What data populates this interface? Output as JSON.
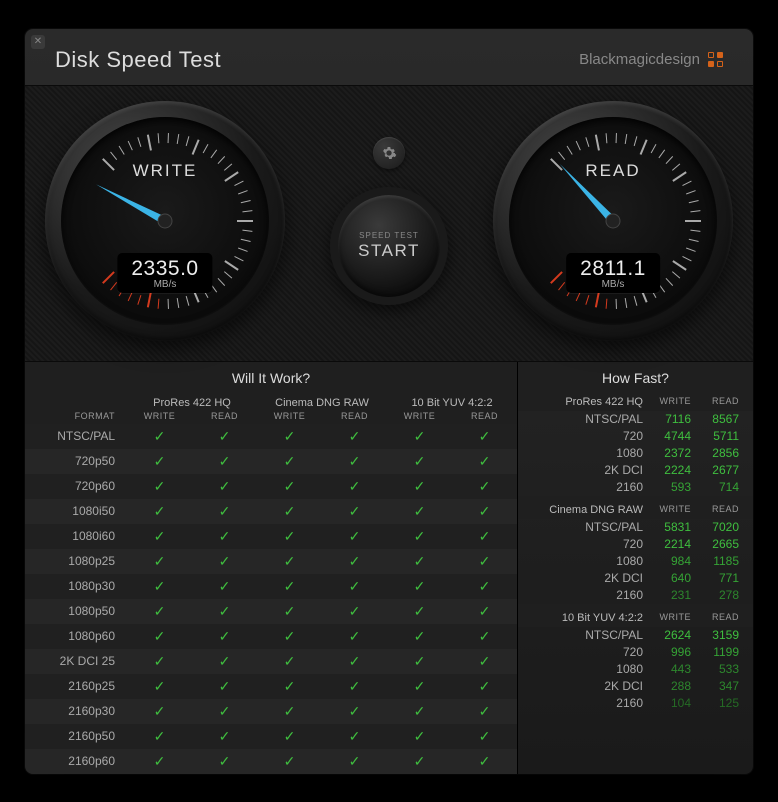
{
  "app": {
    "title": "Disk Speed Test",
    "brand": "Blackmagicdesign"
  },
  "gauges": {
    "write": {
      "label": "WRITE",
      "value": "2335.0",
      "unit": "MB/s",
      "angle_deg": -62,
      "ticks": 41,
      "major_every": 5,
      "start_deg": -135,
      "sweep_deg": 270,
      "red_from_tick": 34
    },
    "read": {
      "label": "READ",
      "value": "2811.1",
      "unit": "MB/s",
      "angle_deg": -43,
      "ticks": 41,
      "major_every": 5,
      "start_deg": -135,
      "sweep_deg": 270,
      "red_from_tick": 34
    }
  },
  "start": {
    "small": "SPEED TEST",
    "big": "START"
  },
  "will_it_work": {
    "title": "Will It Work?",
    "format_header": "FORMAT",
    "groups": [
      {
        "name": "ProRes 422 HQ",
        "cols": [
          "WRITE",
          "READ"
        ]
      },
      {
        "name": "Cinema DNG RAW",
        "cols": [
          "WRITE",
          "READ"
        ]
      },
      {
        "name": "10 Bit YUV 4:2:2",
        "cols": [
          "WRITE",
          "READ"
        ]
      }
    ],
    "formats": [
      "NTSC/PAL",
      "720p50",
      "720p60",
      "1080i50",
      "1080i60",
      "1080p25",
      "1080p30",
      "1080p50",
      "1080p60",
      "2K DCI 25",
      "2160p25",
      "2160p30",
      "2160p50",
      "2160p60"
    ],
    "all_pass": true
  },
  "how_fast": {
    "title": "How Fast?",
    "write_label": "WRITE",
    "read_label": "READ",
    "groups": [
      {
        "name": "ProRes 422 HQ",
        "rows": [
          {
            "fmt": "NTSC/PAL",
            "w": "7116",
            "r": "8567",
            "wc": "g1",
            "rc": "g1"
          },
          {
            "fmt": "720",
            "w": "4744",
            "r": "5711",
            "wc": "g1",
            "rc": "g1"
          },
          {
            "fmt": "1080",
            "w": "2372",
            "r": "2856",
            "wc": "g1",
            "rc": "g1"
          },
          {
            "fmt": "2K DCI",
            "w": "2224",
            "r": "2677",
            "wc": "g1",
            "rc": "g1"
          },
          {
            "fmt": "2160",
            "w": "593",
            "r": "714",
            "wc": "g2",
            "rc": "g2"
          }
        ]
      },
      {
        "name": "Cinema DNG RAW",
        "rows": [
          {
            "fmt": "NTSC/PAL",
            "w": "5831",
            "r": "7020",
            "wc": "g1",
            "rc": "g1"
          },
          {
            "fmt": "720",
            "w": "2214",
            "r": "2665",
            "wc": "g1",
            "rc": "g1"
          },
          {
            "fmt": "1080",
            "w": "984",
            "r": "1185",
            "wc": "g2",
            "rc": "g2"
          },
          {
            "fmt": "2K DCI",
            "w": "640",
            "r": "771",
            "wc": "g2",
            "rc": "g2"
          },
          {
            "fmt": "2160",
            "w": "231",
            "r": "278",
            "wc": "g3",
            "rc": "g3"
          }
        ]
      },
      {
        "name": "10 Bit YUV 4:2:2",
        "rows": [
          {
            "fmt": "NTSC/PAL",
            "w": "2624",
            "r": "3159",
            "wc": "g1",
            "rc": "g1"
          },
          {
            "fmt": "720",
            "w": "996",
            "r": "1199",
            "wc": "g2",
            "rc": "g2"
          },
          {
            "fmt": "1080",
            "w": "443",
            "r": "533",
            "wc": "g3",
            "rc": "g3"
          },
          {
            "fmt": "2K DCI",
            "w": "288",
            "r": "347",
            "wc": "g3",
            "rc": "g3"
          },
          {
            "fmt": "2160",
            "w": "104",
            "r": "125",
            "wc": "g4",
            "rc": "g4"
          }
        ]
      }
    ]
  },
  "colors": {
    "needle": "#3bb4e6",
    "tick": "#aaaaaa",
    "red_tick": "#d43a1e",
    "check": "#3fbf3f"
  }
}
